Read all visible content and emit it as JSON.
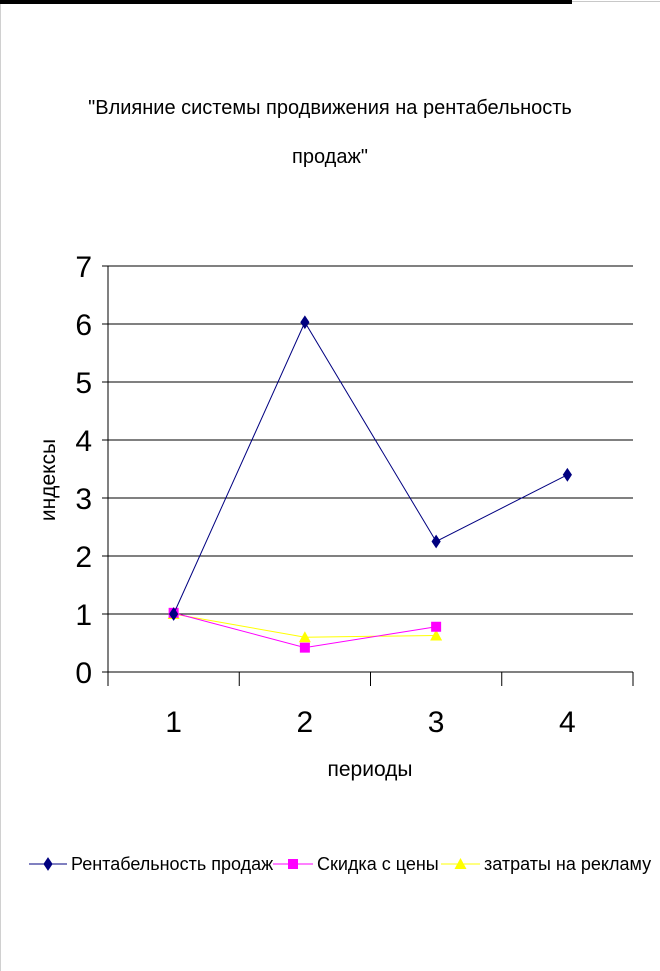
{
  "chart_data": {
    "type": "line",
    "title": "\"Влияние системы продвижения на рентабельность продаж\"",
    "title_lines": [
      "\"Влияние системы продвижения на рентабельность",
      "продаж\""
    ],
    "xlabel": "периоды",
    "ylabel": "индексы",
    "categories": [
      "1",
      "2",
      "3",
      "4"
    ],
    "ylim": [
      0,
      7
    ],
    "yticks": [
      "0",
      "1",
      "2",
      "3",
      "4",
      "5",
      "6",
      "7"
    ],
    "grid": true,
    "legend_position": "bottom",
    "series": [
      {
        "name": "Рентабельность продаж",
        "color": "#000080",
        "marker": "diamond",
        "values": [
          1.0,
          6.03,
          2.25,
          3.4
        ]
      },
      {
        "name": "Скидка с цены",
        "color": "#ff00ff",
        "marker": "square",
        "values": [
          1.02,
          0.42,
          0.78,
          null
        ]
      },
      {
        "name": "затраты на рекламу",
        "color": "#ffff00",
        "marker": "triangle",
        "values": [
          1.0,
          0.6,
          0.63,
          null
        ]
      }
    ]
  }
}
